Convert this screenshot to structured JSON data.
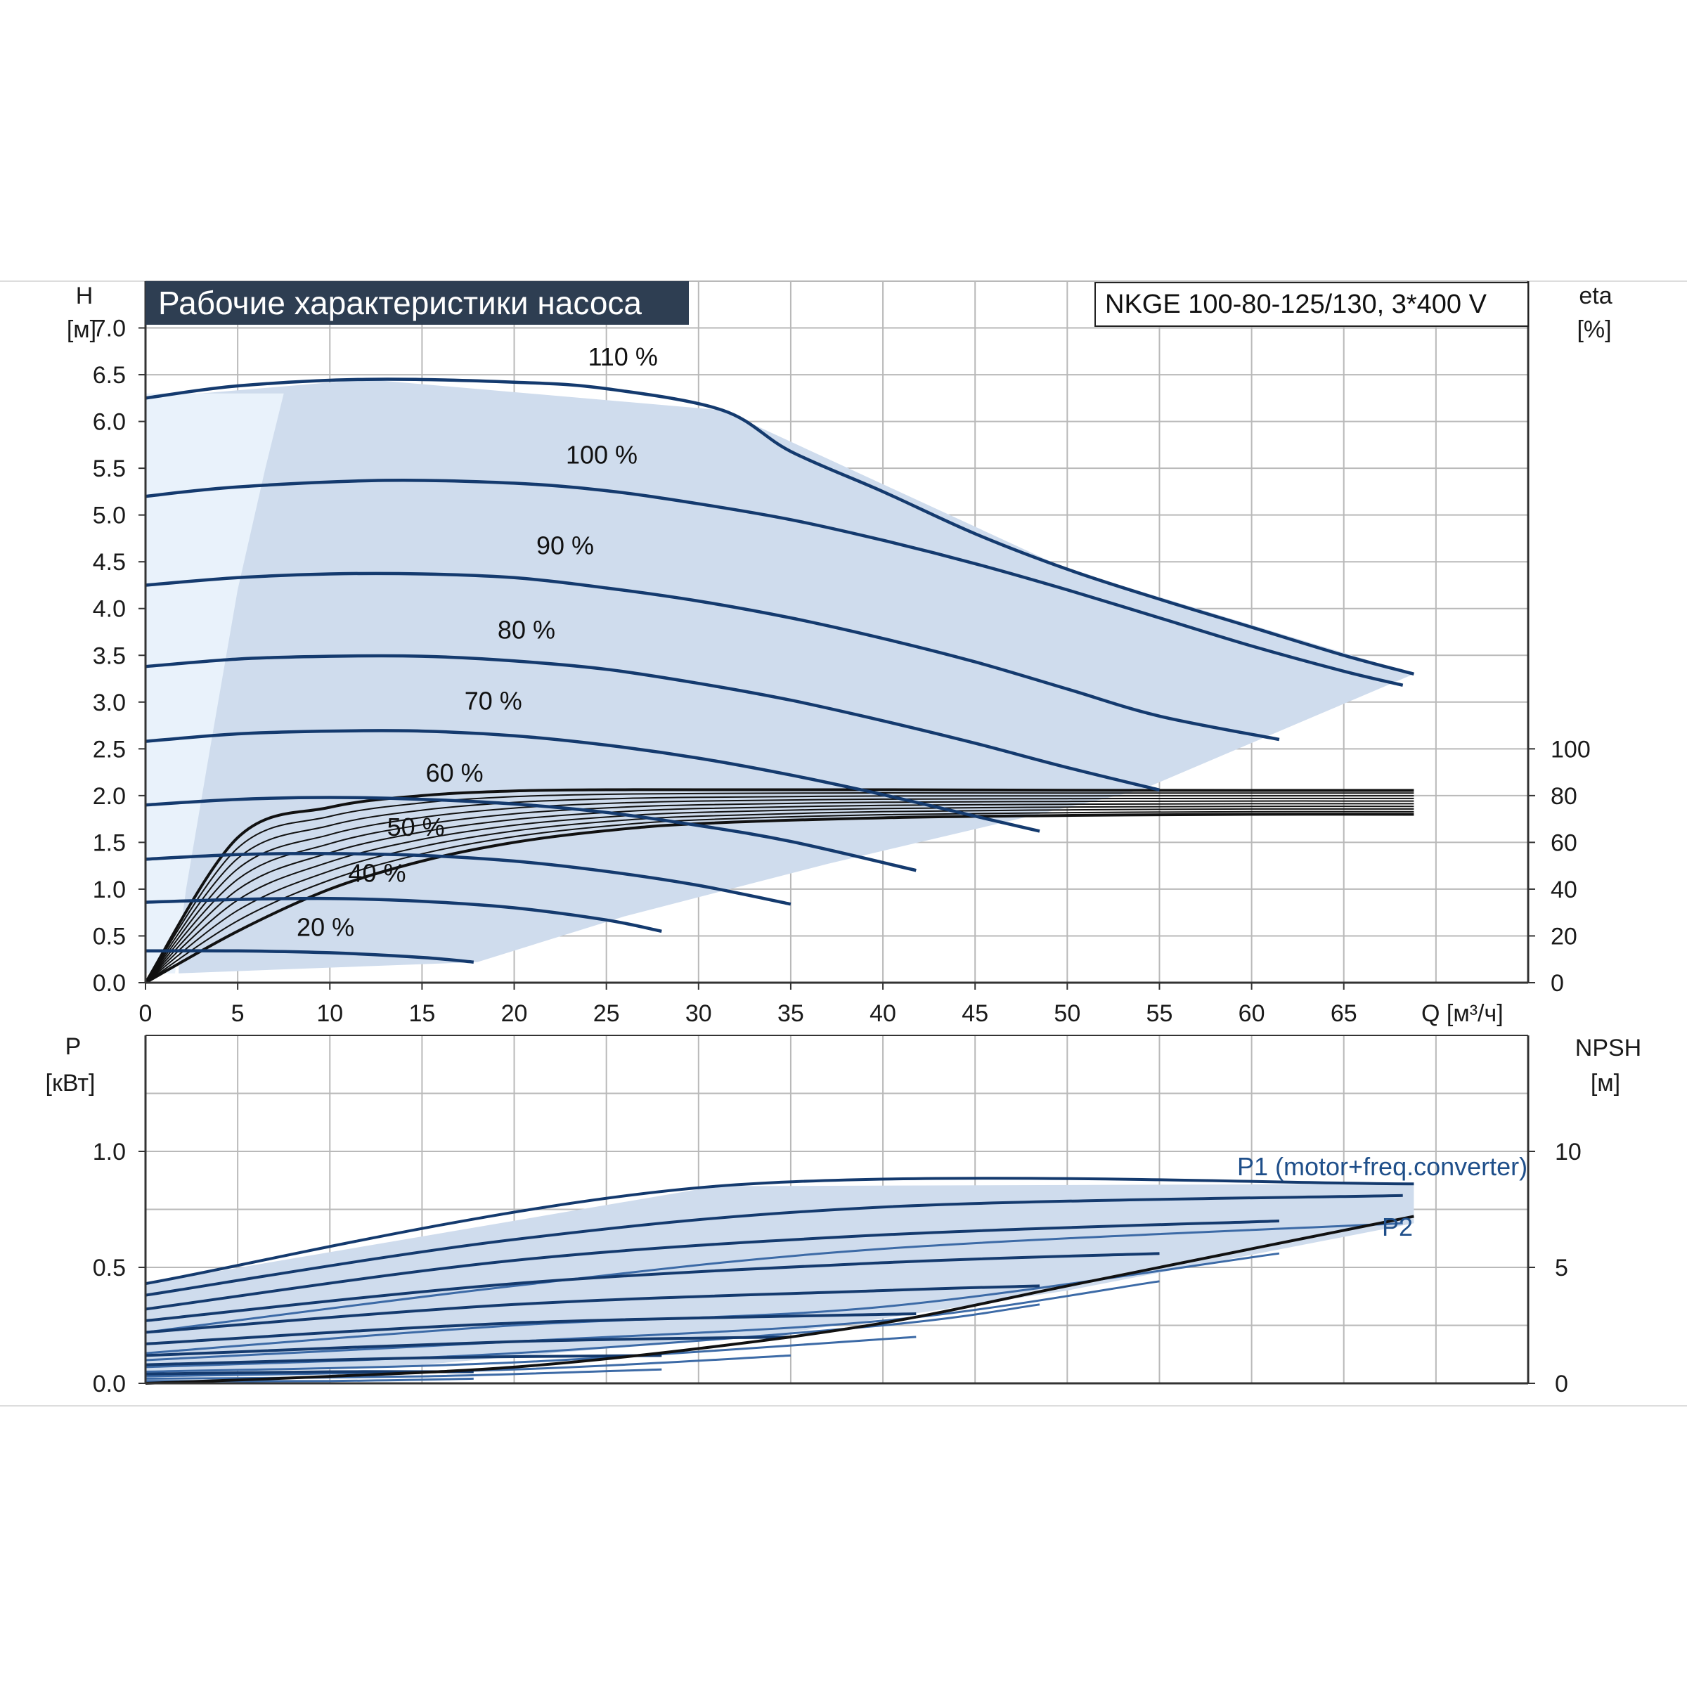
{
  "title": "Рабочие характеристики насоса",
  "model": "NKGE 100-80-125/130, 3*400 V",
  "colors": {
    "curve": "#143a6e",
    "area": "#cfdced",
    "area_light": "#e9f2fb",
    "grid": "#b9b9b9",
    "axis": "#333333",
    "title_bg": "#2e3e52",
    "eff": "#111111",
    "label_blue": "#1f4f8a"
  },
  "chart_data": [
    {
      "type": "line",
      "name": "head",
      "xlabel": "Q [м³/ч]",
      "ylabel_line1": "H",
      "ylabel_line2": "[м]",
      "y2label_line1": "eta",
      "y2label_line2": "[%]",
      "xlim": [
        0,
        75
      ],
      "ylim": [
        0,
        7.0
      ],
      "xticks": [
        0,
        5,
        10,
        15,
        20,
        25,
        30,
        35,
        40,
        45,
        50,
        55,
        60,
        65
      ],
      "xtick_labels": [
        "0",
        "5",
        "10",
        "15",
        "20",
        "25",
        "30",
        "35",
        "40",
        "45",
        "50",
        "55",
        "60",
        "65"
      ],
      "yticks": [
        0,
        0.5,
        1.0,
        1.5,
        2.0,
        2.5,
        3.0,
        3.5,
        4.0,
        4.5,
        5.0,
        5.5,
        6.0,
        6.5,
        7.0
      ],
      "ytick_labels": [
        "0.0",
        "0.5",
        "1.0",
        "1.5",
        "2.0",
        "2.5",
        "3.0",
        "3.5",
        "4.0",
        "4.5",
        "5.0",
        "5.5",
        "6.0",
        "6.5",
        "7.0"
      ],
      "y2_map_to_y": [
        0,
        2.5
      ],
      "y2ticks": [
        0,
        20,
        40,
        60,
        80,
        100
      ],
      "y2tick_labels": [
        "0",
        "20",
        "40",
        "60",
        "80",
        "100"
      ],
      "grid": true,
      "envelope": [
        [
          0,
          6.25
        ],
        [
          12,
          6.45
        ],
        [
          31.3,
          6.12
        ],
        [
          50,
          4.42
        ],
        [
          68.8,
          3.3
        ],
        [
          54,
          2.06
        ],
        [
          37,
          1.27
        ],
        [
          26,
          0.71
        ],
        [
          18,
          0.22
        ],
        [
          1.8,
          0.1
        ],
        [
          1.8,
          6.3
        ]
      ],
      "low_flow_band": [
        [
          0,
          6.3
        ],
        [
          7.5,
          6.3
        ],
        [
          6.5,
          5.5
        ],
        [
          5.0,
          4.2
        ],
        [
          3.5,
          2.5
        ],
        [
          2.2,
          1.0
        ],
        [
          1.6,
          0.1
        ],
        [
          0,
          0.1
        ]
      ],
      "series": [
        {
          "name": "110 %",
          "x": [
            0,
            5,
            12,
            20,
            25,
            31.3,
            35,
            40,
            45,
            50,
            55,
            60,
            65,
            68.8
          ],
          "y": [
            6.25,
            6.38,
            6.45,
            6.42,
            6.35,
            6.12,
            5.68,
            5.25,
            4.8,
            4.42,
            4.1,
            3.8,
            3.5,
            3.3
          ],
          "label_x": 24,
          "label_y": 6.6
        },
        {
          "name": "100 %",
          "x": [
            0,
            5,
            13,
            20,
            25,
            30,
            35,
            40,
            45,
            50,
            55,
            60,
            65,
            68.2
          ],
          "y": [
            5.2,
            5.3,
            5.37,
            5.34,
            5.26,
            5.12,
            4.95,
            4.73,
            4.48,
            4.2,
            3.9,
            3.6,
            3.33,
            3.18
          ],
          "label_x": 22.8,
          "label_y": 5.55
        },
        {
          "name": "90 %",
          "x": [
            0,
            5,
            10,
            15,
            20,
            25,
            30,
            35,
            40,
            45,
            50,
            55,
            61.5
          ],
          "y": [
            4.25,
            4.33,
            4.37,
            4.37,
            4.33,
            4.22,
            4.08,
            3.9,
            3.68,
            3.43,
            3.14,
            2.85,
            2.6
          ],
          "label_x": 21.2,
          "label_y": 4.58
        },
        {
          "name": "80 %",
          "x": [
            0,
            5,
            10,
            15,
            20,
            25,
            30,
            35,
            40,
            45,
            50,
            55
          ],
          "y": [
            3.38,
            3.46,
            3.49,
            3.49,
            3.44,
            3.35,
            3.2,
            3.02,
            2.8,
            2.56,
            2.3,
            2.06
          ],
          "label_x": 19.1,
          "label_y": 3.68
        },
        {
          "name": "70 %",
          "x": [
            0,
            5,
            10,
            15,
            20,
            25,
            30,
            35,
            40,
            45,
            48.5
          ],
          "y": [
            2.58,
            2.66,
            2.69,
            2.69,
            2.64,
            2.54,
            2.4,
            2.22,
            2.01,
            1.78,
            1.62
          ],
          "label_x": 17.3,
          "label_y": 2.92
        },
        {
          "name": "60 %",
          "x": [
            0,
            5,
            10,
            15,
            20,
            25,
            30,
            35,
            41.8
          ],
          "y": [
            1.9,
            1.96,
            1.98,
            1.96,
            1.91,
            1.82,
            1.68,
            1.51,
            1.2
          ],
          "label_x": 15.2,
          "label_y": 2.15
        },
        {
          "name": "50 %",
          "x": [
            0,
            5,
            10,
            15,
            20,
            25,
            30,
            35
          ],
          "y": [
            1.32,
            1.37,
            1.38,
            1.36,
            1.3,
            1.19,
            1.04,
            0.84
          ],
          "label_x": 13.1,
          "label_y": 1.57
        },
        {
          "name": "40 %",
          "x": [
            0,
            5,
            10,
            15,
            20,
            25,
            28
          ],
          "y": [
            0.86,
            0.89,
            0.9,
            0.87,
            0.8,
            0.67,
            0.55
          ],
          "label_x": 11.0,
          "label_y": 1.08
        },
        {
          "name": "20 %",
          "x": [
            0,
            5,
            10,
            15,
            17.8
          ],
          "y": [
            0.34,
            0.34,
            0.32,
            0.27,
            0.22
          ],
          "label_x": 8.2,
          "label_y": 0.5
        }
      ],
      "efficiency_curves": [
        {
          "x": [
            0,
            5,
            10,
            15,
            20,
            25,
            30,
            40,
            50,
            60,
            68.8
          ],
          "eta": [
            0,
            62,
            75,
            80,
            82,
            82.5,
            82.5,
            82.5,
            82.3,
            82.2,
            82.2
          ]
        },
        {
          "x": [
            0,
            5,
            10,
            15,
            20,
            25,
            30,
            40,
            50,
            60,
            68.8
          ],
          "eta": [
            0,
            22,
            40,
            52,
            60,
            65,
            68,
            70.5,
            71.5,
            72,
            72
          ]
        }
      ]
    },
    {
      "type": "line",
      "name": "power",
      "ylabel_line1": "P",
      "ylabel_line2": "[кВт]",
      "y2label_line1": "NPSH",
      "y2label_line2": "[м]",
      "xlim": [
        0,
        75
      ],
      "ylim": [
        0,
        1.5
      ],
      "yticks": [
        0,
        0.5,
        1.0
      ],
      "ytick_labels": [
        "0.0",
        "0.5",
        "1.0"
      ],
      "y2ticks": [
        0,
        5,
        10
      ],
      "y2tick_labels": [
        "0",
        "5",
        "10"
      ],
      "grid": true,
      "p1_label": "P1 (motor+freq.converter)",
      "p2_label": "P2",
      "envelope": [
        [
          0,
          0.43
        ],
        [
          31,
          0.85
        ],
        [
          68.8,
          0.86
        ],
        [
          68.8,
          0.69
        ],
        [
          50,
          0.4
        ],
        [
          35,
          0.22
        ],
        [
          25,
          0.15
        ],
        [
          15,
          0.08
        ],
        [
          0,
          0.04
        ]
      ],
      "p1_curves": [
        {
          "x": [
            0,
            31,
            68.8
          ],
          "y": [
            0.43,
            0.85,
            0.86
          ]
        },
        {
          "x": [
            0,
            20,
            40,
            68.2
          ],
          "y": [
            0.38,
            0.62,
            0.76,
            0.81
          ]
        },
        {
          "x": [
            0,
            20,
            40,
            61.5
          ],
          "y": [
            0.32,
            0.53,
            0.64,
            0.7
          ]
        },
        {
          "x": [
            0,
            20,
            40,
            55
          ],
          "y": [
            0.27,
            0.43,
            0.52,
            0.56
          ]
        },
        {
          "x": [
            0,
            20,
            40,
            48.5
          ],
          "y": [
            0.22,
            0.34,
            0.4,
            0.42
          ]
        },
        {
          "x": [
            0,
            20,
            41.8
          ],
          "y": [
            0.17,
            0.26,
            0.3
          ]
        },
        {
          "x": [
            0,
            20,
            35
          ],
          "y": [
            0.12,
            0.18,
            0.2
          ]
        },
        {
          "x": [
            0,
            15,
            28
          ],
          "y": [
            0.08,
            0.11,
            0.12
          ]
        },
        {
          "x": [
            0,
            10,
            17.8
          ],
          "y": [
            0.04,
            0.05,
            0.05
          ]
        }
      ],
      "p2_curves": [
        {
          "x": [
            0,
            20,
            40,
            68.2
          ],
          "y": [
            0.22,
            0.42,
            0.58,
            0.69
          ]
        },
        {
          "x": [
            0,
            20,
            40,
            61.5
          ],
          "y": [
            0.13,
            0.25,
            0.33,
            0.56
          ]
        },
        {
          "x": [
            0,
            20,
            40,
            55
          ],
          "y": [
            0.1,
            0.18,
            0.27,
            0.44
          ]
        },
        {
          "x": [
            0,
            20,
            40,
            48.5
          ],
          "y": [
            0.07,
            0.13,
            0.25,
            0.34
          ]
        },
        {
          "x": [
            0,
            20,
            41.8
          ],
          "y": [
            0.05,
            0.09,
            0.2
          ]
        },
        {
          "x": [
            0,
            20,
            35
          ],
          "y": [
            0.03,
            0.06,
            0.12
          ]
        },
        {
          "x": [
            0,
            15,
            28
          ],
          "y": [
            0.02,
            0.03,
            0.06
          ]
        },
        {
          "x": [
            0,
            10,
            17.8
          ],
          "y": [
            0.01,
            0.01,
            0.02
          ]
        }
      ],
      "npsh_curve": {
        "x": [
          0,
          10,
          20,
          30,
          40,
          50,
          60,
          68.8
        ],
        "y": [
          0,
          0.03,
          0.07,
          0.15,
          0.26,
          0.42,
          0.58,
          0.72
        ]
      }
    }
  ]
}
